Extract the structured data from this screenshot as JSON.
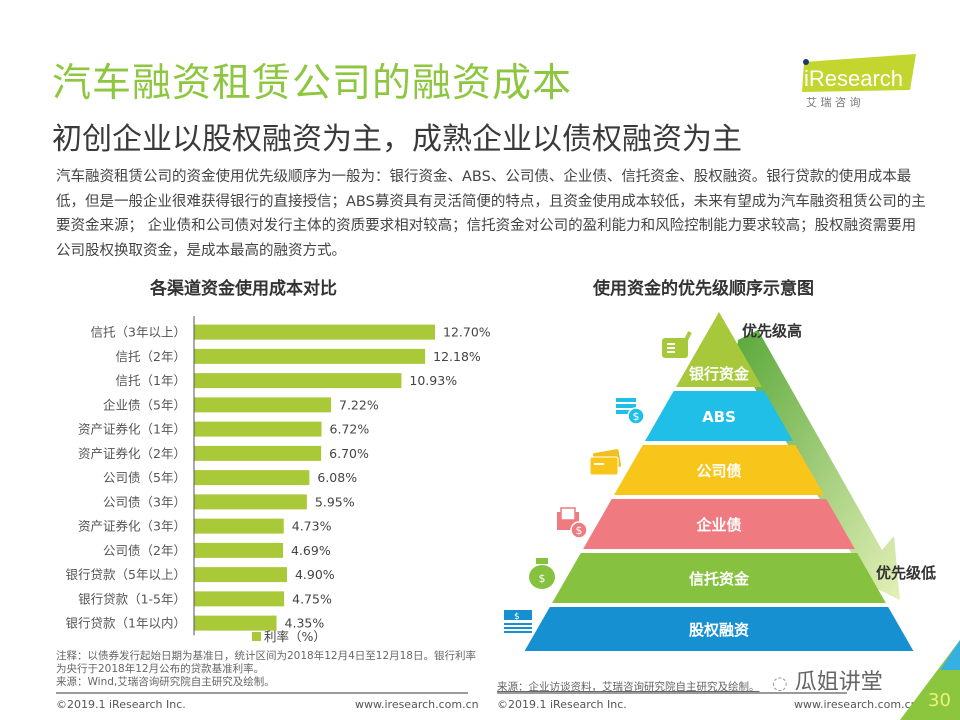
{
  "header": {
    "title": "汽车融资租赁公司的融资成本",
    "subtitle": "初创企业以股权融资为主，成熟企业以债权融资为主",
    "logo_text": "iResearch",
    "logo_subtext": "艾 瑞 咨 询"
  },
  "intro": "汽车融资租赁公司的资金使用优先级顺序为一般为：银行资金、ABS、公司债、企业债、信托资金、股权融资。银行贷款的使用成本最低，但是一般企业很难获得银行的直接授信；ABS募资具有灵活简便的特点，且资金使用成本较低，未来有望成为汽车融资租赁公司的主要资金来源； 企业债和公司债对发行主体的资质要求相对较高；信托资金对公司的盈利能力和风险控制能力要求较高；股权融资需要用公司股权换取资金，是成本最高的融资方式。",
  "chart_data": {
    "type": "bar",
    "orientation": "horizontal",
    "title": "各渠道资金使用成本对比",
    "categories": [
      "信托（3年以上）",
      "信托（2年）",
      "信托（1年）",
      "企业债（5年）",
      "资产证券化（1年）",
      "资产证券化（2年）",
      "公司债（5年）",
      "公司债（3年）",
      "资产证券化（3年）",
      "公司债（2年）",
      "银行贷款（5年以上）",
      "银行贷款（1-5年）",
      "银行贷款（1年以内）"
    ],
    "values": [
      12.7,
      12.18,
      10.93,
      7.22,
      6.72,
      6.7,
      6.08,
      5.95,
      4.73,
      4.69,
      4.9,
      4.75,
      4.35
    ],
    "value_labels": [
      "12.70%",
      "12.18%",
      "10.93%",
      "7.22%",
      "6.72%",
      "6.70%",
      "6.08%",
      "5.95%",
      "4.73%",
      "4.69%",
      "4.90%",
      "4.75%",
      "4.35%"
    ],
    "series": [
      {
        "name": "利率（%）",
        "color": "#a9c938"
      }
    ],
    "xlabel": "",
    "ylabel": "",
    "xlim": [
      0,
      14
    ],
    "grid": false,
    "legend": "bottom-center"
  },
  "bar_chart": {
    "note": "注释：以债券发行起始日期为基准日，统计区间为2018年12月4日至12月18日。银行利率为央行于2018年12月公布的贷款基准利率。",
    "source": "来源：Wind,艾瑞咨询研究院自主研究及绘制。"
  },
  "pyramid": {
    "title": "使用资金的优先级顺序示意图",
    "tiers": [
      {
        "label": "银行资金",
        "color": "#a8c83c",
        "icon": "document-pen-icon"
      },
      {
        "label": "ABS",
        "color": "#1fbfe8",
        "icon": "coin-stack-icon"
      },
      {
        "label": "公司债",
        "color": "#f8c61a",
        "icon": "credit-card-icon"
      },
      {
        "label": "企业债",
        "color": "#ef7b81",
        "icon": "invoice-dollar-icon"
      },
      {
        "label": "信托资金",
        "color": "#86c13f",
        "icon": "money-bag-icon"
      },
      {
        "label": "股权融资",
        "color": "#1790d2",
        "icon": "cash-stack-icon"
      }
    ],
    "high_label": "优先级高",
    "low_label": "优先级低",
    "source": "来源：企业访谈资料，艾瑞咨询研究院自主研究及绘制。"
  },
  "footer": {
    "copyright": "©2019.1 iResearch Inc.",
    "website": "www.iresearch.com.cn",
    "page_number": "30",
    "watermark": "瓜姐讲堂"
  }
}
